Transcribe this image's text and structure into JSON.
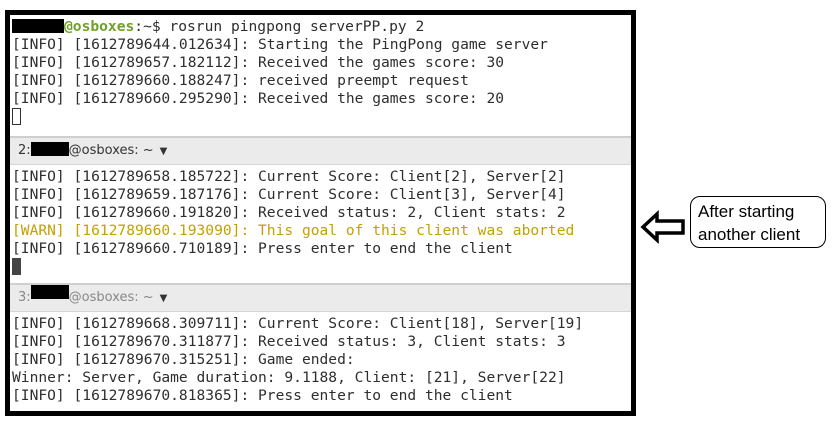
{
  "pane1": {
    "prompt_host": "@osboxes",
    "prompt_rest": ":~$ rosrun pingpong serverPP.py 2",
    "lines": [
      "[INFO] [1612789644.012634]: Starting the PingPong game server",
      "[INFO] [1612789657.182112]: Received the games score: 30",
      "[INFO] [1612789660.188247]: received preempt request",
      "[INFO] [1612789660.295290]: Received the games score: 20"
    ]
  },
  "pane2": {
    "tab_prefix": "2:",
    "tab_title": "@osboxes: ~",
    "lines": [
      "[INFO] [1612789658.185722]: Current Score: Client[2], Server[2]",
      "[INFO] [1612789659.187176]: Current Score: Client[3], Server[4]",
      "[INFO] [1612789660.191820]: Received status: 2, Client stats: 2",
      "[WARN] [1612789660.193090]: This goal of this client was aborted",
      "[INFO] [1612789660.710189]: Press enter to end the client"
    ]
  },
  "pane3": {
    "tab_prefix": "3:",
    "tab_title": "@osboxes: ~",
    "lines": [
      "[INFO] [1612789668.309711]: Current Score: Client[18], Server[19]",
      "[INFO] [1612789670.311877]: Received status: 3, Client stats: 3",
      "[INFO] [1612789670.315251]: Game ended:",
      "Winner: Server, Game duration: 9.1188, Client: [21], Server[22]",
      "[INFO] [1612789670.818365]: Press enter to end the client"
    ]
  },
  "callout": {
    "line1": "After starting",
    "line2": "another client"
  },
  "colors": {
    "warn": "#c4a000",
    "prompt": "#6fa02a"
  }
}
